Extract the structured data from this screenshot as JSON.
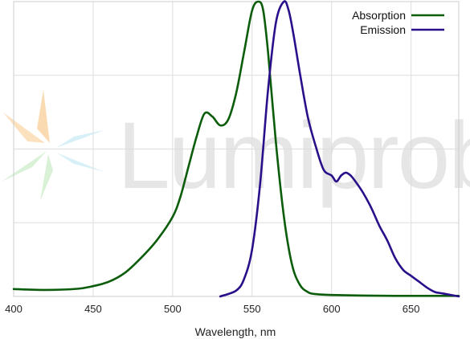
{
  "watermark": {
    "text": "Lumiprobe",
    "logo_colors": [
      "#f9d7a8",
      "#d5efd2",
      "#d3eef6"
    ]
  },
  "chart_data": {
    "type": "line",
    "title": "",
    "xlabel": "Wavelength, nm",
    "ylabel": "",
    "xlim": [
      400,
      680
    ],
    "ylim": [
      0,
      1
    ],
    "x_ticks": [
      400,
      450,
      500,
      550,
      600,
      650
    ],
    "grid": true,
    "legend_position": "top-right",
    "series": [
      {
        "name": "Absorption",
        "color": "#0b5d0b",
        "points": [
          [
            400,
            0.025
          ],
          [
            420,
            0.022
          ],
          [
            440,
            0.026
          ],
          [
            450,
            0.035
          ],
          [
            460,
            0.05
          ],
          [
            470,
            0.08
          ],
          [
            480,
            0.13
          ],
          [
            490,
            0.19
          ],
          [
            500,
            0.27
          ],
          [
            505,
            0.34
          ],
          [
            510,
            0.44
          ],
          [
            515,
            0.54
          ],
          [
            520,
            0.62
          ],
          [
            525,
            0.61
          ],
          [
            530,
            0.58
          ],
          [
            535,
            0.6
          ],
          [
            540,
            0.69
          ],
          [
            545,
            0.83
          ],
          [
            550,
            0.97
          ],
          [
            554,
            1.0
          ],
          [
            557,
            0.97
          ],
          [
            560,
            0.83
          ],
          [
            565,
            0.52
          ],
          [
            570,
            0.27
          ],
          [
            575,
            0.11
          ],
          [
            580,
            0.04
          ],
          [
            585,
            0.015
          ],
          [
            590,
            0.008
          ],
          [
            600,
            0.005
          ],
          [
            620,
            0.003
          ],
          [
            640,
            0.002
          ],
          [
            660,
            0.002
          ],
          [
            680,
            0.002
          ]
        ]
      },
      {
        "name": "Emission",
        "color": "#2a0f8a",
        "points": [
          [
            530,
            0.0
          ],
          [
            540,
            0.02
          ],
          [
            545,
            0.06
          ],
          [
            550,
            0.16
          ],
          [
            555,
            0.38
          ],
          [
            560,
            0.7
          ],
          [
            565,
            0.93
          ],
          [
            570,
            1.0
          ],
          [
            573,
            0.97
          ],
          [
            576,
            0.89
          ],
          [
            580,
            0.76
          ],
          [
            585,
            0.61
          ],
          [
            590,
            0.51
          ],
          [
            595,
            0.43
          ],
          [
            600,
            0.41
          ],
          [
            603,
            0.39
          ],
          [
            606,
            0.41
          ],
          [
            609,
            0.42
          ],
          [
            612,
            0.41
          ],
          [
            615,
            0.39
          ],
          [
            620,
            0.35
          ],
          [
            625,
            0.3
          ],
          [
            630,
            0.24
          ],
          [
            635,
            0.19
          ],
          [
            640,
            0.13
          ],
          [
            645,
            0.09
          ],
          [
            650,
            0.07
          ],
          [
            655,
            0.05
          ],
          [
            660,
            0.03
          ],
          [
            665,
            0.015
          ],
          [
            670,
            0.01
          ],
          [
            680,
            0.0
          ]
        ]
      }
    ]
  }
}
